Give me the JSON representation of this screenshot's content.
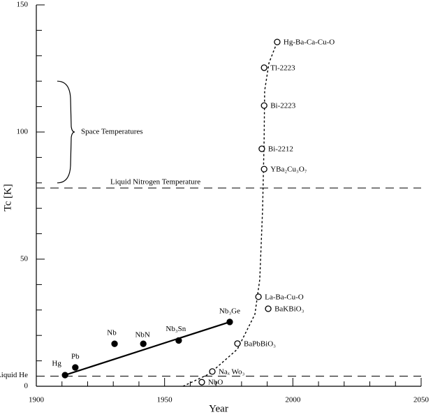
{
  "chart_data": {
    "type": "scatter",
    "x_label": "Year",
    "y_label": "Tc [K]",
    "xlim": [
      1900,
      2050
    ],
    "xticks": [
      1900,
      1950,
      2000,
      2050
    ],
    "xminorticks": [
      1910,
      1920,
      1930,
      1940,
      1960,
      1970,
      1980,
      1990,
      2010,
      2020,
      2030,
      2040
    ],
    "ylim": [
      0,
      150
    ],
    "yticks": [
      0,
      50,
      100,
      150
    ],
    "yminorticks": [
      10,
      20,
      30,
      40,
      60,
      70,
      80,
      90,
      110,
      120,
      130,
      140
    ],
    "series": [
      {
        "marker": "filled",
        "color": "#000000",
        "trend": true,
        "labels": [
          "Hg",
          "Pb",
          "Nb",
          "NbN",
          "Nb₃Sn",
          "Nb₃Ge"
        ],
        "x": [
          1911.2,
          1915.2,
          1930.5,
          1941.7,
          1955.5,
          1975.4
        ],
        "values": [
          4.4,
          7.4,
          16.7,
          16.7,
          18,
          25.3
        ]
      },
      {
        "marker": "open",
        "color": "#000000",
        "labels": [
          "NbO",
          "Naₓ Wo₃",
          "BaPbBiO₃",
          "BaKBiO₃",
          "La-Ba-Cu-O",
          "YBa₂Cu₃O₇",
          "Bi-2212",
          "Bi-2223",
          "Tl-2223",
          "Hg-Ba-Ca-Cu-O"
        ],
        "x": [
          1964.5,
          1968.6,
          1978.4,
          1990.4,
          1986.6,
          1988.8,
          1987.9,
          1988.8,
          1988.8,
          1993.9
        ],
        "values": [
          1.6,
          5.8,
          16.8,
          30.5,
          35.2,
          85.4,
          93.4,
          110.4,
          125.3,
          135.4
        ]
      }
    ],
    "curve": {
      "x": [
        1957.2,
        1967.5,
        1978.4,
        1985.2,
        1987.1,
        1988.2,
        1988.8,
        1989.0,
        1990.7,
        1993.9
      ],
      "values": [
        0,
        4.9,
        14.6,
        28.3,
        42.0,
        69.5,
        97.0,
        116.2,
        127.2,
        135.4
      ]
    },
    "hlines": [
      {
        "label": "Liquid Nitrogen Temperature",
        "value": 78
      },
      {
        "label": "Liquid He",
        "value": 4
      }
    ],
    "bracket": {
      "label": "Space Temperatures",
      "range": [
        80,
        120
      ]
    }
  }
}
